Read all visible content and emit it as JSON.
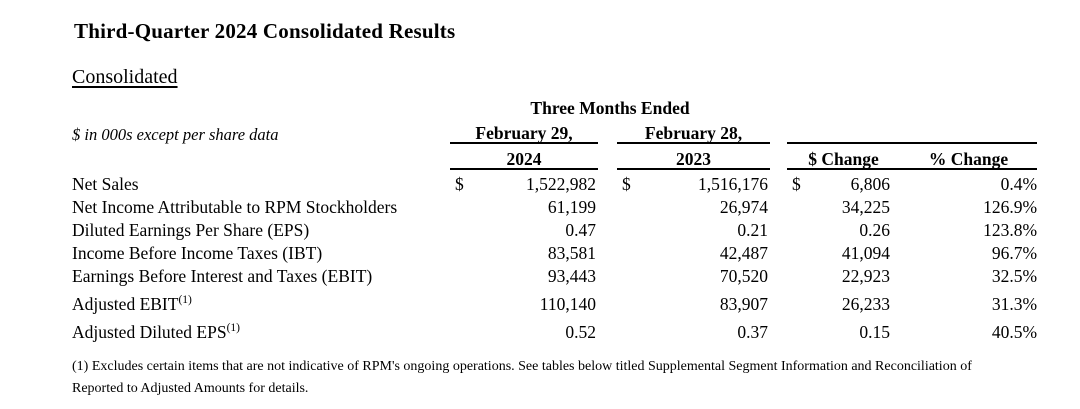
{
  "page": {
    "title": "Third-Quarter 2024 Consolidated Results",
    "section_label": "Consolidated"
  },
  "table": {
    "units_note": "$ in 000s except per share data",
    "group_header": "Three Months Ended",
    "col_2024": {
      "line1": "February 29,",
      "line2": "2024"
    },
    "col_2023": {
      "line1": "February 28,",
      "line2": "2023"
    },
    "col_dollar_change": "$ Change",
    "col_percent_change": "% Change",
    "rows": [
      {
        "label": "Net Sales",
        "currency": "$",
        "y2024": "1,522,982",
        "y2023": "1,516,176",
        "dollar_change": "6,806",
        "percent_change": "0.4%"
      },
      {
        "label": "Net Income Attributable to RPM Stockholders",
        "y2024": "61,199",
        "y2023": "26,974",
        "dollar_change": "34,225",
        "percent_change": "126.9%"
      },
      {
        "label": "Diluted Earnings Per Share (EPS)",
        "y2024": "0.47",
        "y2023": "0.21",
        "dollar_change": "0.26",
        "percent_change": "123.8%"
      },
      {
        "label": "Income Before Income Taxes (IBT)",
        "y2024": "83,581",
        "y2023": "42,487",
        "dollar_change": "41,094",
        "percent_change": "96.7%"
      },
      {
        "label": "Earnings Before Interest and Taxes (EBIT)",
        "y2024": "93,443",
        "y2023": "70,520",
        "dollar_change": "22,923",
        "percent_change": "32.5%"
      },
      {
        "label": "Adjusted EBIT",
        "label_superscript": "(1)",
        "y2024": "110,140",
        "y2023": "83,907",
        "dollar_change": "26,233",
        "percent_change": "31.3%"
      },
      {
        "label": "Adjusted Diluted EPS",
        "label_superscript": "(1)",
        "y2024": "0.52",
        "y2023": "0.37",
        "dollar_change": "0.15",
        "percent_change": "40.5%"
      }
    ]
  },
  "footnote": {
    "text": "(1) Excludes certain items that are not indicative of RPM's ongoing operations. See tables below titled Supplemental Segment Information and Reconciliation of Reported to Adjusted Amounts for details."
  }
}
